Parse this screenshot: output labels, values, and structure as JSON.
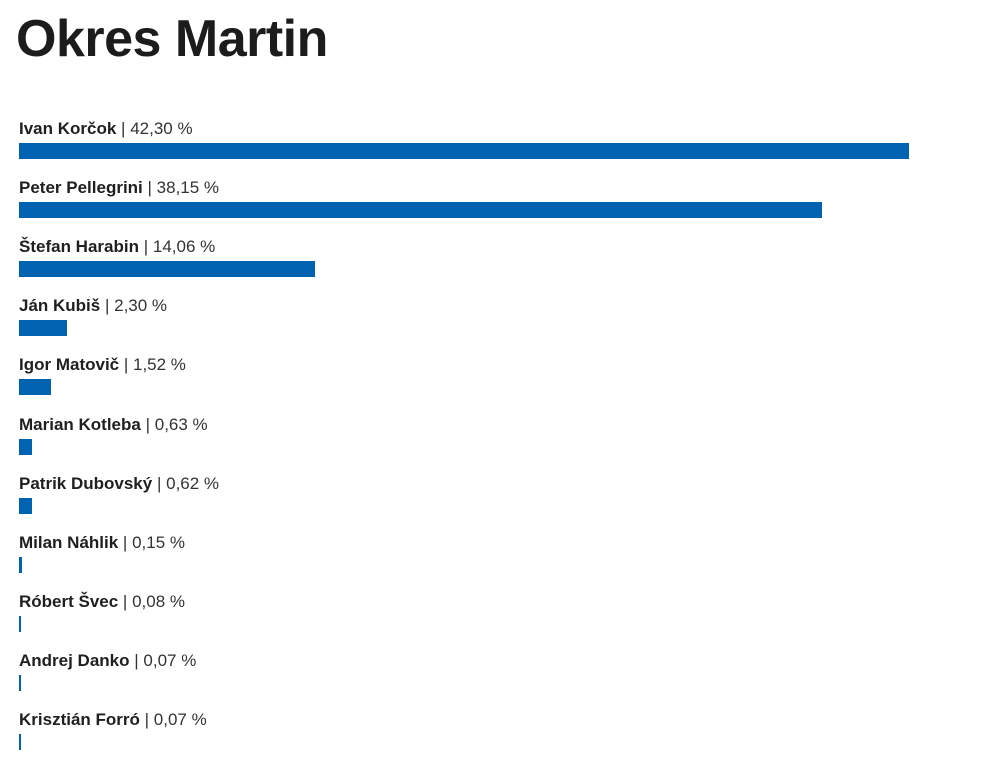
{
  "title": "Okres Martin",
  "colors": {
    "bar": "#0063b2",
    "text": "#1f1f1f"
  },
  "chart_data": {
    "type": "bar",
    "orientation": "horizontal",
    "title": "Okres Martin",
    "value_suffix": " %",
    "categories": [
      "Ivan Korčok",
      "Peter Pellegrini",
      "Štefan Harabin",
      "Ján Kubiš",
      "Igor Matovič",
      "Marian Kotleba",
      "Patrik Dubovský",
      "Milan Náhlik",
      "Róbert Švec",
      "Andrej Danko",
      "Krisztián Forró"
    ],
    "values": [
      42.3,
      38.15,
      14.06,
      2.3,
      1.52,
      0.63,
      0.62,
      0.15,
      0.08,
      0.07,
      0.07
    ],
    "value_labels": [
      "42,30 %",
      "38,15 %",
      "14,06 %",
      "2,30 %",
      "1,52 %",
      "0,63 %",
      "0,62 %",
      "0,15 %",
      "0,08 %",
      "0,07 %",
      "0,07 %"
    ],
    "xlim": [
      0,
      42.3
    ],
    "grid": false,
    "legend": "none"
  }
}
